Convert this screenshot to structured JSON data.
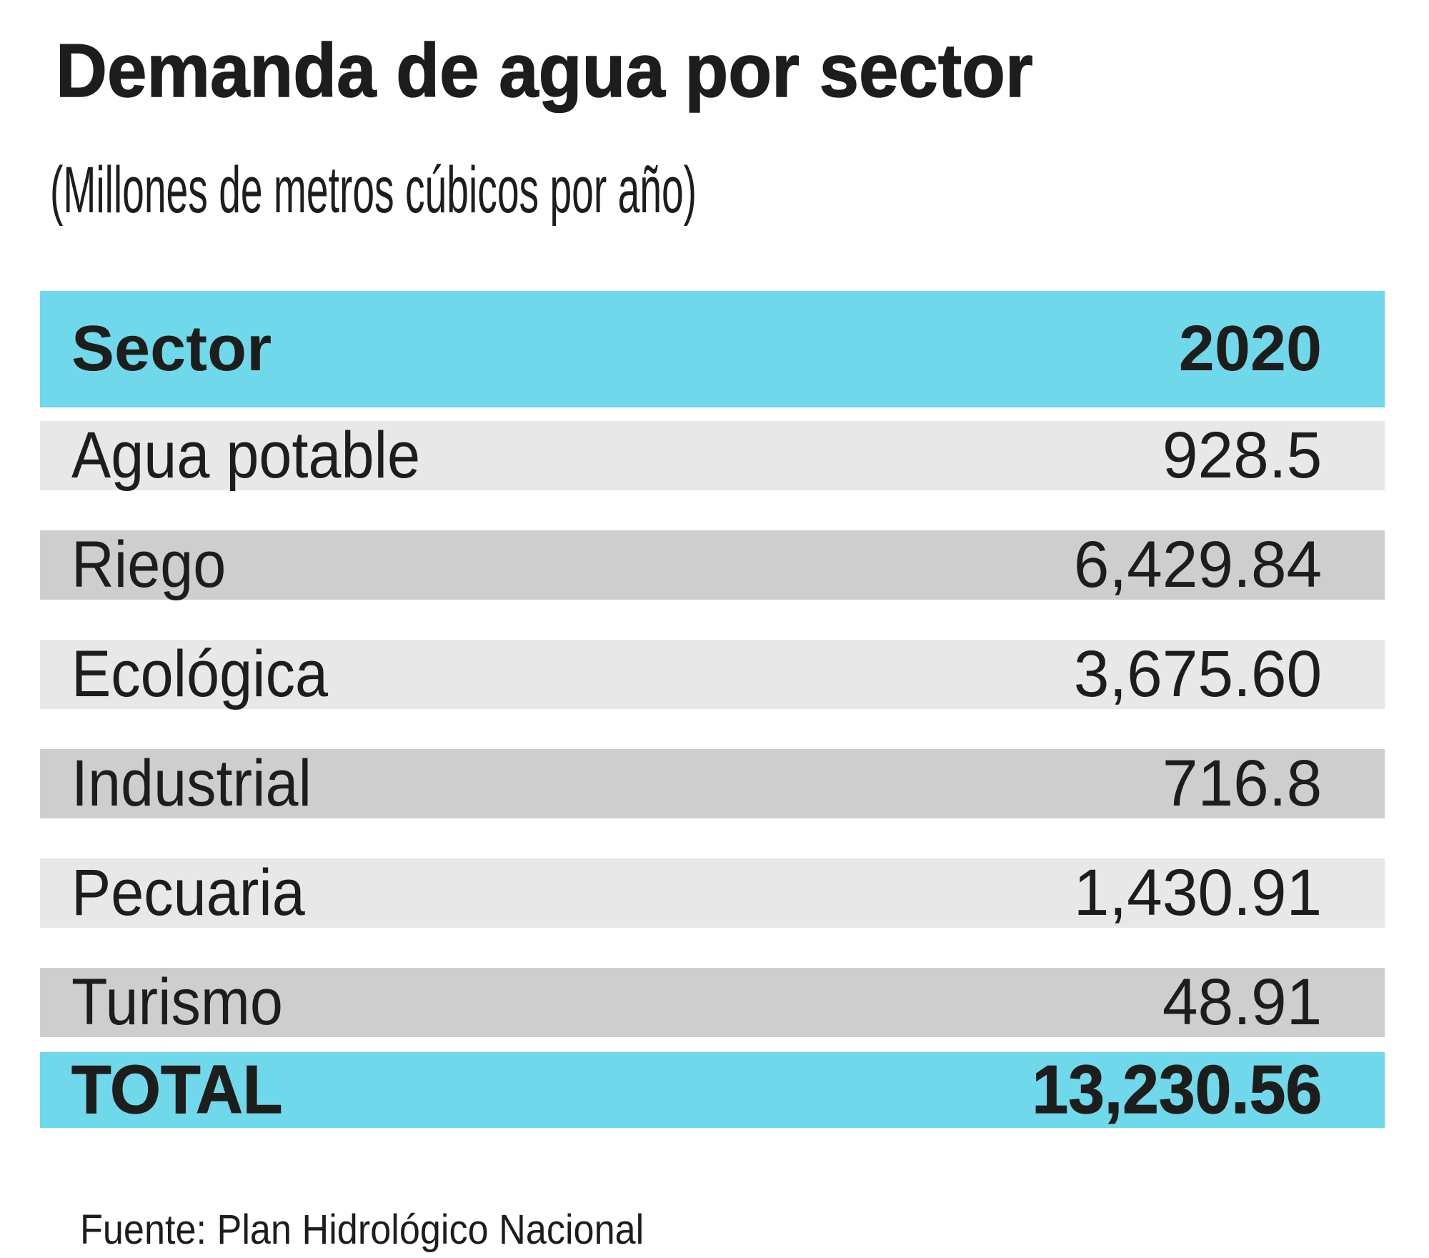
{
  "title": "Demanda de agua por sector",
  "subtitle": "(Millones de metros cúbicos por año)",
  "table": {
    "header": {
      "sector": "Sector",
      "year": "2020"
    },
    "rows": [
      {
        "sector": "Agua potable",
        "value": "928.5"
      },
      {
        "sector": "Riego",
        "value": "6,429.84"
      },
      {
        "sector": "Ecológica",
        "value": "3,675.60"
      },
      {
        "sector": "Industrial",
        "value": "716.8"
      },
      {
        "sector": "Pecuaria",
        "value": "1,430.91"
      },
      {
        "sector": "Turismo",
        "value": "48.91"
      }
    ],
    "total": {
      "label": "TOTAL",
      "value": "13,230.56"
    }
  },
  "source": "Fuente: Plan Hidrológico Nacional",
  "colors": {
    "header_bg": "#70D8EB",
    "row_light": "#E8E8E8",
    "row_dark": "#CECECE",
    "text": "#1D1D1B"
  },
  "chart_data": {
    "type": "table",
    "title": "Demanda de agua por sector",
    "subtitle": "(Millones de metros cúbicos por año)",
    "columns": [
      "Sector",
      "2020"
    ],
    "categories": [
      "Agua potable",
      "Riego",
      "Ecológica",
      "Industrial",
      "Pecuaria",
      "Turismo"
    ],
    "values": [
      928.5,
      6429.84,
      3675.6,
      716.8,
      1430.91,
      48.91
    ],
    "total": 13230.56,
    "source": "Fuente: Plan Hidrológico Nacional"
  }
}
